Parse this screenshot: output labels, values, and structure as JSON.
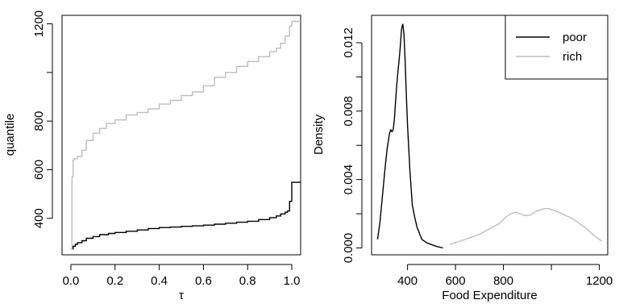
{
  "chart_data": [
    {
      "type": "line",
      "xlabel": "τ",
      "ylabel": "quantile",
      "xlim": [
        -0.04,
        1.04
      ],
      "ylim": [
        250,
        1235
      ],
      "xticks": [
        0.0,
        0.2,
        0.4,
        0.6,
        0.8,
        1.0
      ],
      "xtick_labels": [
        "0.0",
        "0.2",
        "0.4",
        "0.6",
        "0.8",
        "1.0"
      ],
      "yticks": [
        400,
        600,
        800,
        1000,
        1200
      ],
      "ytick_labels": [
        "400",
        "600",
        "800",
        "",
        "1200"
      ],
      "grid": false,
      "series": [
        {
          "color": "#000000",
          "step": true,
          "x": [
            0.0,
            0.01,
            0.02,
            0.03,
            0.05,
            0.07,
            0.1,
            0.13,
            0.17,
            0.2,
            0.25,
            0.3,
            0.35,
            0.4,
            0.45,
            0.5,
            0.55,
            0.6,
            0.65,
            0.7,
            0.75,
            0.8,
            0.85,
            0.9,
            0.93,
            0.95,
            0.97,
            0.98,
            0.99,
            1.0,
            1.04
          ],
          "y": [
            275,
            285,
            293,
            300,
            308,
            318,
            325,
            333,
            338,
            342,
            347,
            352,
            358,
            362,
            364,
            367,
            369,
            372,
            376,
            380,
            384,
            388,
            395,
            403,
            410,
            418,
            425,
            430,
            470,
            548,
            548
          ]
        },
        {
          "color": "#bebebe",
          "step": true,
          "x": [
            0.0,
            0.005,
            0.01,
            0.015,
            0.03,
            0.05,
            0.07,
            0.1,
            0.13,
            0.16,
            0.2,
            0.25,
            0.3,
            0.35,
            0.4,
            0.45,
            0.5,
            0.55,
            0.6,
            0.65,
            0.7,
            0.75,
            0.8,
            0.85,
            0.9,
            0.93,
            0.95,
            0.97,
            0.99,
            1.0,
            1.04
          ],
          "y": [
            275,
            570,
            640,
            645,
            655,
            680,
            720,
            750,
            770,
            790,
            805,
            825,
            835,
            850,
            870,
            885,
            905,
            920,
            945,
            980,
            1000,
            1025,
            1045,
            1065,
            1085,
            1100,
            1120,
            1150,
            1190,
            1210,
            1210
          ]
        }
      ]
    },
    {
      "type": "line",
      "xlabel": "Food Expenditure",
      "ylabel": "Density",
      "xlim": [
        250,
        1235
      ],
      "ylim": [
        -0.0004,
        0.0136
      ],
      "xticks": [
        400,
        600,
        800,
        1000,
        1200
      ],
      "xtick_labels": [
        "400",
        "600",
        "800",
        "",
        "1200"
      ],
      "yticks": [
        0.0,
        0.002,
        0.004,
        0.006,
        0.008,
        0.01,
        0.012
      ],
      "ytick_labels": [
        "0.000",
        "",
        "0.004",
        "",
        "0.008",
        "",
        "0.012"
      ],
      "grid": false,
      "legend_position": "top-right",
      "legend": [
        "poor",
        "rich"
      ],
      "series": [
        {
          "name": "poor",
          "color": "#000000",
          "x": [
            275,
            285,
            295,
            305,
            315,
            325,
            330,
            335,
            340,
            345,
            350,
            355,
            360,
            365,
            370,
            375,
            380,
            385,
            390,
            395,
            400,
            410,
            420,
            430,
            440,
            460,
            480,
            500,
            520,
            548
          ],
          "y": [
            0.0005,
            0.0015,
            0.003,
            0.0045,
            0.0058,
            0.0067,
            0.0069,
            0.0068,
            0.0069,
            0.0075,
            0.0085,
            0.0095,
            0.0103,
            0.011,
            0.0118,
            0.0128,
            0.0131,
            0.0125,
            0.011,
            0.009,
            0.0072,
            0.0045,
            0.0025,
            0.0018,
            0.0012,
            0.0005,
            0.0003,
            0.0002,
            0.0001,
            0.0
          ]
        },
        {
          "name": "rich",
          "color": "#bebebe",
          "x": [
            575,
            620,
            660,
            700,
            740,
            780,
            810,
            830,
            850,
            870,
            890,
            910,
            930,
            950,
            970,
            990,
            1010,
            1030,
            1060,
            1090,
            1120,
            1150,
            1180,
            1210
          ],
          "y": [
            0.0002,
            0.0004,
            0.0006,
            0.0008,
            0.0011,
            0.0014,
            0.0018,
            0.002,
            0.0021,
            0.002,
            0.0019,
            0.0019,
            0.0021,
            0.0022,
            0.0023,
            0.0023,
            0.0022,
            0.0021,
            0.0019,
            0.0017,
            0.0014,
            0.0011,
            0.0007,
            0.0004
          ]
        }
      ]
    }
  ]
}
